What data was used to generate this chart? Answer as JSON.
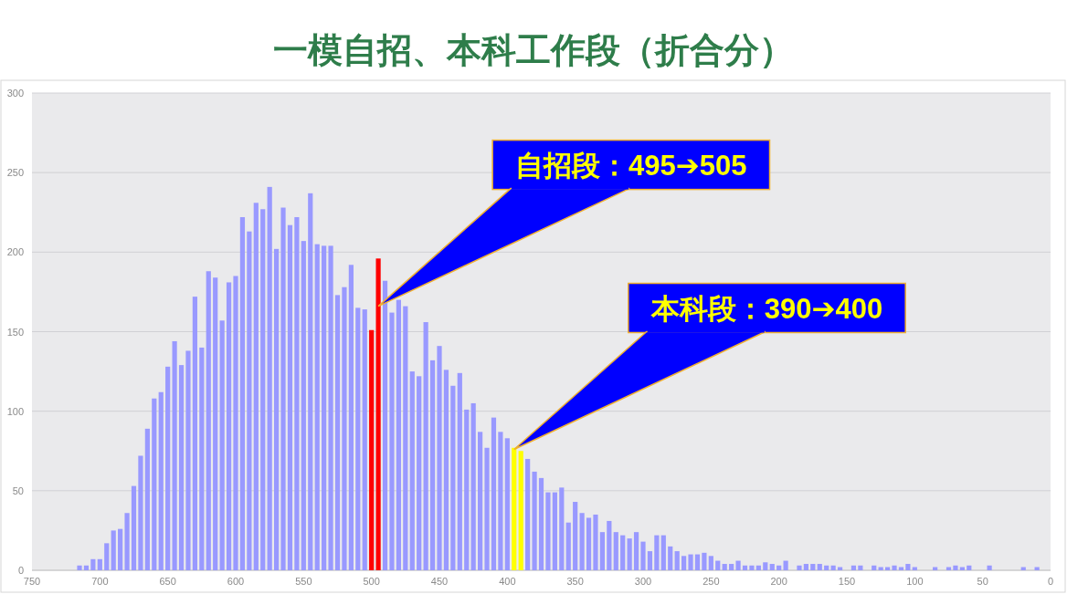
{
  "chart_data": {
    "type": "bar",
    "title": "一模自招、本科工作段（折合分）",
    "x": [
      715,
      710,
      705,
      700,
      695,
      690,
      685,
      680,
      675,
      670,
      665,
      660,
      655,
      650,
      645,
      640,
      635,
      630,
      625,
      620,
      615,
      610,
      605,
      600,
      595,
      590,
      585,
      580,
      575,
      570,
      565,
      560,
      555,
      550,
      545,
      540,
      535,
      530,
      525,
      520,
      515,
      510,
      505,
      500,
      495,
      490,
      485,
      480,
      475,
      470,
      465,
      460,
      455,
      450,
      445,
      440,
      435,
      430,
      425,
      420,
      415,
      410,
      405,
      400,
      395,
      390,
      385,
      380,
      375,
      370,
      365,
      360,
      355,
      350,
      345,
      340,
      335,
      330,
      325,
      320,
      315,
      310,
      305,
      300,
      295,
      290,
      285,
      280,
      275,
      270,
      265,
      260,
      255,
      250,
      245,
      240,
      235,
      230,
      225,
      220,
      215,
      210,
      205,
      200,
      195,
      190,
      185,
      180,
      175,
      170,
      165,
      160,
      155,
      150,
      145,
      140,
      135,
      130,
      125,
      120,
      115,
      110,
      105,
      100,
      95,
      90,
      85,
      80,
      75,
      70,
      65,
      60,
      55,
      50,
      45,
      40,
      35,
      30,
      25,
      20,
      15,
      10
    ],
    "values": [
      3,
      3,
      7,
      7,
      17,
      25,
      26,
      36,
      53,
      72,
      89,
      108,
      112,
      128,
      144,
      129,
      138,
      172,
      140,
      188,
      184,
      157,
      181,
      185,
      222,
      213,
      231,
      227,
      241,
      202,
      228,
      217,
      222,
      207,
      237,
      205,
      204,
      204,
      173,
      178,
      192,
      165,
      164,
      151,
      196,
      182,
      162,
      170,
      166,
      125,
      122,
      156,
      132,
      141,
      126,
      116,
      124,
      101,
      105,
      87,
      77,
      96,
      87,
      83,
      77,
      75,
      70,
      62,
      58,
      49,
      49,
      52,
      30,
      43,
      36,
      33,
      35,
      24,
      31,
      24,
      22,
      20,
      24,
      18,
      12,
      22,
      22,
      15,
      12,
      9,
      10,
      10,
      11,
      9,
      6,
      4,
      4,
      6,
      3,
      3,
      3,
      5,
      4,
      3,
      6,
      0,
      3,
      4,
      4,
      4,
      3,
      3,
      2,
      0,
      3,
      3,
      0,
      3,
      2,
      2,
      3,
      2,
      4,
      2,
      0,
      0,
      2,
      0,
      2,
      3,
      2,
      3,
      0,
      0,
      3,
      0,
      0,
      0,
      0,
      2,
      0,
      2
    ],
    "colors": [
      "#9999ff",
      "#9999ff",
      "#9999ff",
      "#9999ff",
      "#9999ff",
      "#9999ff",
      "#9999ff",
      "#9999ff",
      "#9999ff",
      "#9999ff",
      "#9999ff",
      "#9999ff",
      "#9999ff",
      "#9999ff",
      "#9999ff",
      "#9999ff",
      "#9999ff",
      "#9999ff",
      "#9999ff",
      "#9999ff",
      "#9999ff",
      "#9999ff",
      "#9999ff",
      "#9999ff",
      "#9999ff",
      "#9999ff",
      "#9999ff",
      "#9999ff",
      "#9999ff",
      "#9999ff",
      "#9999ff",
      "#9999ff",
      "#9999ff",
      "#9999ff",
      "#9999ff",
      "#9999ff",
      "#9999ff",
      "#9999ff",
      "#9999ff",
      "#9999ff",
      "#9999ff",
      "#9999ff",
      "#9999ff",
      "#ff0000",
      "#ff0000",
      "#9999ff",
      "#9999ff",
      "#9999ff",
      "#9999ff",
      "#9999ff",
      "#9999ff",
      "#9999ff",
      "#9999ff",
      "#9999ff",
      "#9999ff",
      "#9999ff",
      "#9999ff",
      "#9999ff",
      "#9999ff",
      "#9999ff",
      "#9999ff",
      "#9999ff",
      "#9999ff",
      "#9999ff",
      "#ffff00",
      "#ffff00",
      "#9999ff",
      "#9999ff",
      "#9999ff",
      "#9999ff",
      "#9999ff",
      "#9999ff",
      "#9999ff",
      "#9999ff",
      "#9999ff",
      "#9999ff",
      "#9999ff",
      "#9999ff",
      "#9999ff",
      "#9999ff",
      "#9999ff",
      "#9999ff",
      "#9999ff",
      "#9999ff",
      "#9999ff",
      "#9999ff",
      "#9999ff",
      "#9999ff",
      "#9999ff",
      "#9999ff",
      "#9999ff",
      "#9999ff",
      "#9999ff",
      "#9999ff",
      "#9999ff",
      "#9999ff",
      "#9999ff",
      "#9999ff",
      "#9999ff",
      "#9999ff",
      "#9999ff",
      "#9999ff",
      "#9999ff",
      "#9999ff",
      "#9999ff",
      "#9999ff",
      "#9999ff",
      "#9999ff",
      "#9999ff",
      "#9999ff",
      "#9999ff",
      "#9999ff",
      "#9999ff",
      "#9999ff",
      "#9999ff",
      "#9999ff",
      "#9999ff",
      "#9999ff",
      "#9999ff",
      "#9999ff",
      "#9999ff",
      "#9999ff",
      "#9999ff",
      "#9999ff",
      "#9999ff",
      "#9999ff",
      "#9999ff",
      "#9999ff",
      "#9999ff",
      "#9999ff",
      "#9999ff",
      "#9999ff",
      "#9999ff",
      "#9999ff",
      "#9999ff",
      "#9999ff",
      "#9999ff",
      "#9999ff",
      "#9999ff",
      "#9999ff",
      "#9999ff",
      "#9999ff"
    ],
    "xlim": [
      750,
      0
    ],
    "xticks": [
      750,
      700,
      650,
      600,
      550,
      500,
      450,
      400,
      350,
      300,
      250,
      200,
      150,
      100,
      50,
      0
    ],
    "ylim": [
      0,
      300
    ],
    "yticks": [
      0,
      50,
      100,
      150,
      200,
      250,
      300
    ],
    "grid": "y",
    "annotations": [
      {
        "text": "自招段：495➔505",
        "x": 495,
        "y": 166
      },
      {
        "text": "本科段：390➔400",
        "x": 395,
        "y": 76
      }
    ]
  }
}
